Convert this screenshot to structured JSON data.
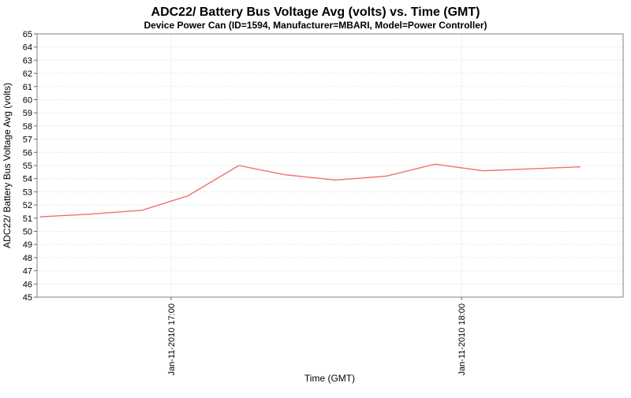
{
  "chart_data": {
    "type": "line",
    "title": "ADC22/ Battery Bus Voltage Avg (volts) vs. Time (GMT)",
    "subtitle": "Device Power Can (ID=1594, Manufacturer=MBARI, Model=Power Controller)",
    "xlabel": "Time (GMT)",
    "ylabel": "ADC22/ Battery Bus Voltage Avg (volts)",
    "ylim": [
      45,
      65
    ],
    "y_ticks": [
      45,
      46,
      47,
      48,
      49,
      50,
      51,
      52,
      53,
      54,
      55,
      56,
      57,
      58,
      59,
      60,
      61,
      62,
      63,
      64,
      65
    ],
    "x_ticks": [
      {
        "label": "Jan-11-2010 17:00",
        "minutes": 0
      },
      {
        "label": "Jan-11-2010 18:00",
        "minutes": 60
      }
    ],
    "x_range_minutes": [
      -27.7,
      93.4
    ],
    "grid": "dotted",
    "legend_position": "none",
    "series": [
      {
        "name": "ADC22/ Battery Bus Voltage Avg",
        "color": "#f07070",
        "points": [
          {
            "time_est": "16:33",
            "minutes": -27.0,
            "volts": 51.1
          },
          {
            "time_est": "16:43",
            "minutes": -17.0,
            "volts": 51.3
          },
          {
            "time_est": "16:54",
            "minutes": -6.0,
            "volts": 51.6
          },
          {
            "time_est": "17:03",
            "minutes": 3.5,
            "volts": 52.7
          },
          {
            "time_est": "17:14",
            "minutes": 14.0,
            "volts": 55.0
          },
          {
            "time_est": "17:23",
            "minutes": 23.5,
            "volts": 54.3
          },
          {
            "time_est": "17:34",
            "minutes": 34.0,
            "volts": 53.9
          },
          {
            "time_est": "17:45",
            "minutes": 44.5,
            "volts": 54.2
          },
          {
            "time_est": "17:55",
            "minutes": 54.5,
            "volts": 55.1
          },
          {
            "time_est": "18:05",
            "minutes": 64.5,
            "volts": 54.6
          },
          {
            "time_est": "18:15",
            "minutes": 74.5,
            "volts": 54.75
          },
          {
            "time_est": "18:25",
            "minutes": 84.5,
            "volts": 54.9
          }
        ]
      }
    ],
    "colors": {
      "series_line": "#f07070",
      "gridline": "#d8d8e2",
      "plot_border": "#808080",
      "tick_mark": "#666666",
      "text": "#000000",
      "background": "#ffffff"
    }
  }
}
